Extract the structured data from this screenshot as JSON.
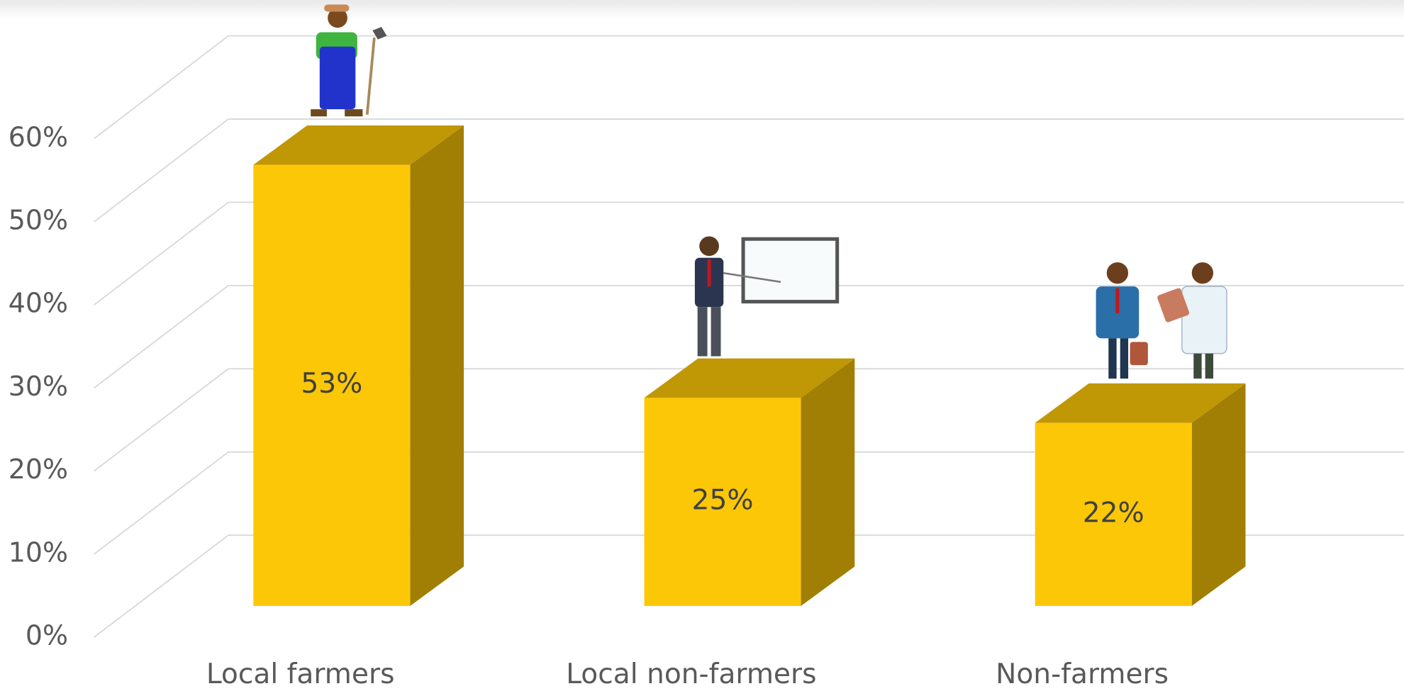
{
  "chart_data": {
    "type": "bar3d",
    "categories": [
      "Local farmers",
      "Local non-farmers",
      "Non-farmers"
    ],
    "values": [
      53,
      25,
      22
    ],
    "value_labels": [
      "53%",
      "25%",
      "22%"
    ],
    "color": "#fcc707",
    "ylim": [
      0,
      60
    ],
    "yticks": [
      {
        "value": 0,
        "label": "0%"
      },
      {
        "value": 10,
        "label": "10%"
      },
      {
        "value": 20,
        "label": "20%"
      },
      {
        "value": 30,
        "label": "30%"
      },
      {
        "value": 40,
        "label": "40%"
      },
      {
        "value": 50,
        "label": "50%"
      },
      {
        "value": 60,
        "label": "60%"
      }
    ],
    "grid": true
  }
}
